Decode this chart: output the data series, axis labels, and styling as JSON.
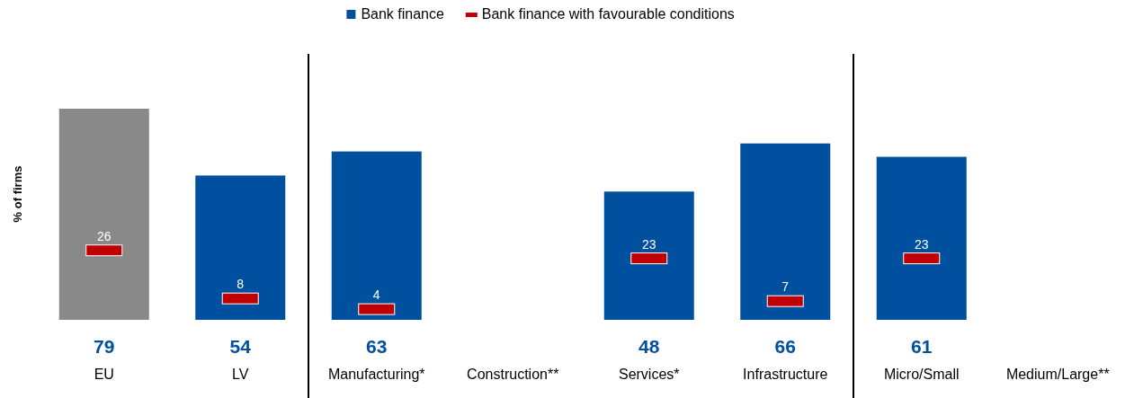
{
  "chart_data": {
    "type": "bar",
    "ylabel": "% of firms",
    "categories": [
      "EU",
      "LV",
      "Manufacturing*",
      "Construction**",
      "Services*",
      "Infrastructure",
      "Micro/Small",
      "Medium/Large**"
    ],
    "tick_labels": "x",
    "legend": "top",
    "data_labels": true,
    "series": [
      {
        "name": "Bank finance",
        "color": "#0050a0",
        "colors": [
          "#898989",
          "#0050a0",
          "#0050a0",
          "#0050a0",
          "#0050a0",
          "#0050a0",
          "#0050a0",
          "#0050a0"
        ],
        "values": [
          79,
          54,
          63,
          null,
          48,
          66,
          61,
          null
        ]
      },
      {
        "name": "Bank finance with favourable conditions",
        "type": "scatter",
        "color": "#c00000",
        "values": [
          26,
          8,
          4,
          null,
          23,
          7,
          23,
          null
        ]
      }
    ]
  }
}
